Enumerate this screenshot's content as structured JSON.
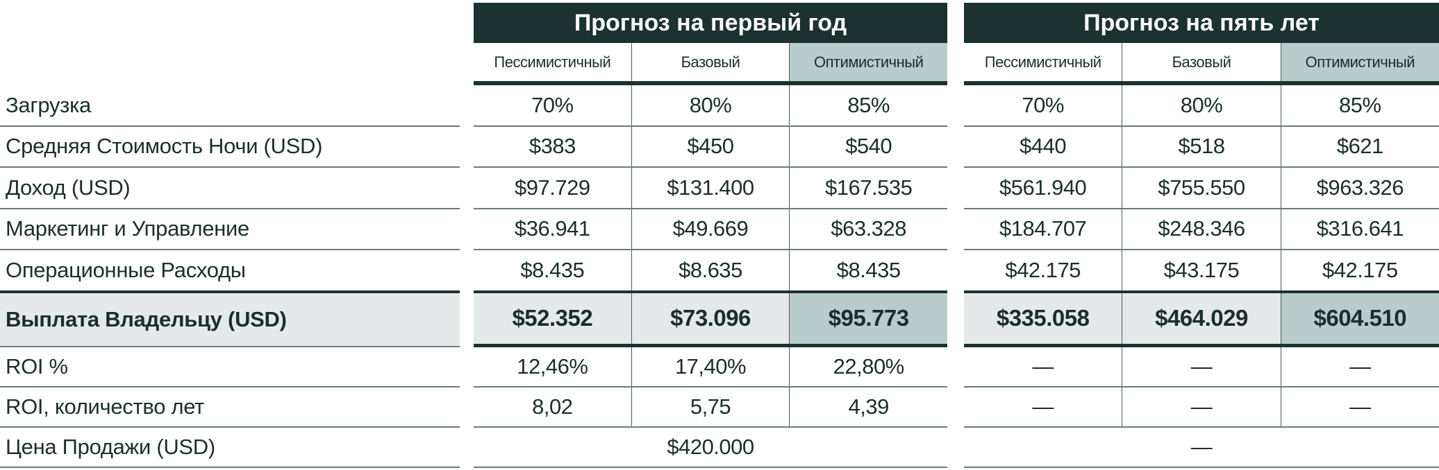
{
  "row_labels": [
    "Загрузка",
    "Средняя Стоимость Ночи (USD)",
    "Доход (USD)",
    "Маркетинг и Управление",
    "Операционные Расходы",
    "Выплата Владельцу (USD)",
    "ROI %",
    "ROI, количество лет",
    "Цена Продажи (USD)"
  ],
  "scenarios": [
    "Пессимистичный",
    "Базовый",
    "Оптимистичный"
  ],
  "year1": {
    "title": "Прогноз на первый год",
    "rows": [
      [
        "70%",
        "80%",
        "85%"
      ],
      [
        "$383",
        "$450",
        "$540"
      ],
      [
        "$97.729",
        "$131.400",
        "$167.535"
      ],
      [
        "$36.941",
        "$49.669",
        "$63.328"
      ],
      [
        "$8.435",
        "$8.635",
        "$8.435"
      ],
      [
        "$52.352",
        "$73.096",
        "$95.773"
      ],
      [
        "12,46%",
        "17,40%",
        "22,80%"
      ],
      [
        "8,02",
        "5,75",
        "4,39"
      ]
    ],
    "sale_price": "$420.000"
  },
  "year5": {
    "title": "Прогноз на пять лет",
    "rows": [
      [
        "70%",
        "80%",
        "85%"
      ],
      [
        "$440",
        "$518",
        "$621"
      ],
      [
        "$561.940",
        "$755.550",
        "$963.326"
      ],
      [
        "$184.707",
        "$248.346",
        "$316.641"
      ],
      [
        "$42.175",
        "$43.175",
        "$42.175"
      ],
      [
        "$335.058",
        "$464.029",
        "$604.510"
      ],
      [
        "—",
        "—",
        "—"
      ],
      [
        "—",
        "—",
        "—"
      ]
    ],
    "sale_price": "—"
  },
  "colors": {
    "header": "#1b3230",
    "highlight": "#b8cccb",
    "total_row": "#e6e9e9",
    "text": "#1b2e2c"
  }
}
